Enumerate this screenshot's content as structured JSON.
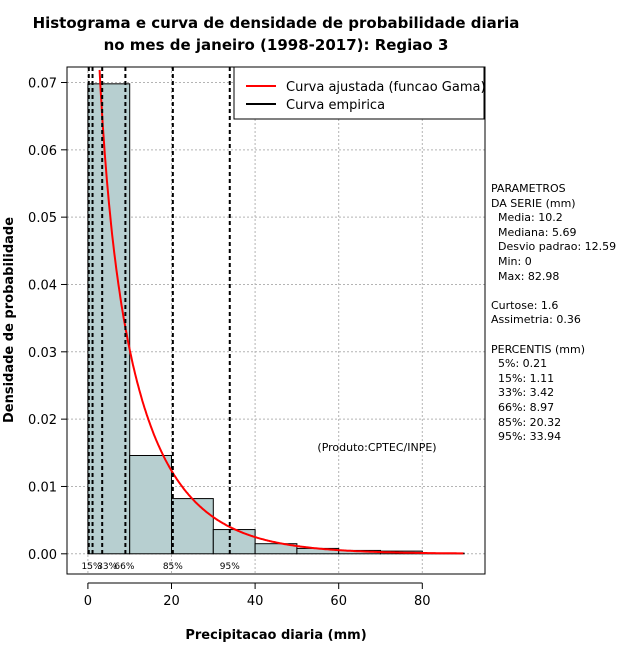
{
  "chart_data": {
    "type": "bar",
    "title_line1": "Histograma e curva de densidade de probabilidade diaria",
    "title_line2": "no mes de janeiro (1998-2017): Regiao 3",
    "xlabel": "Precipitacao diaria (mm)",
    "ylabel": "Densidade de probabilidade",
    "xlim": [
      -5,
      95
    ],
    "ylim": [
      -0.003,
      0.0723
    ],
    "x_ticks": [
      0,
      20,
      40,
      60,
      80
    ],
    "x_tick_labels": [
      "0",
      "20",
      "40",
      "60",
      "80"
    ],
    "y_ticks": [
      0,
      0.01,
      0.02,
      0.03,
      0.04,
      0.05,
      0.06,
      0.07
    ],
    "y_tick_labels": [
      "0.00",
      "0.01",
      "0.02",
      "0.03",
      "0.04",
      "0.05",
      "0.06",
      "0.07"
    ],
    "bins": [
      {
        "from": 0,
        "to": 10,
        "density": 0.0698
      },
      {
        "from": 10,
        "to": 20,
        "density": 0.0146
      },
      {
        "from": 20,
        "to": 30,
        "density": 0.0082
      },
      {
        "from": 30,
        "to": 40,
        "density": 0.0036
      },
      {
        "from": 40,
        "to": 50,
        "density": 0.0015
      },
      {
        "from": 50,
        "to": 60,
        "density": 0.0008
      },
      {
        "from": 60,
        "to": 70,
        "density": 0.0005
      },
      {
        "from": 70,
        "to": 80,
        "density": 0.0004
      },
      {
        "from": 80,
        "to": 90,
        "density": 0.0001
      }
    ],
    "gamma_fit": {
      "shape": 0.72,
      "scale": 14.2
    },
    "percentile_lines": [
      {
        "label": "5%",
        "value": 0.21,
        "show_label": false
      },
      {
        "label": "15%",
        "value": 1.11,
        "show_label": true
      },
      {
        "label": "33%",
        "value": 3.42,
        "show_label": true
      },
      {
        "label": "66%",
        "value": 8.97,
        "show_label": true
      },
      {
        "label": "85%",
        "value": 20.32,
        "show_label": true
      },
      {
        "label": "95%",
        "value": 33.94,
        "show_label": true
      }
    ],
    "legend": [
      {
        "label": "Curva ajustada (funcao Gama)",
        "color": "#ff0000"
      },
      {
        "label": "Curva empirica",
        "color": "#000000"
      }
    ],
    "legend_position": "top-right",
    "annotation": "(Produto:CPTEC/INPE)",
    "bar_color": "#b7cfd0",
    "curve_color": "#ff0000",
    "grid": true
  },
  "params": {
    "title1": "PARAMETROS",
    "title2": "DA SERIE (mm)",
    "media": "  Media: 10.2",
    "mediana": "  Mediana: 5.69",
    "desvio": "  Desvio padrao: 12.59",
    "min": "  Min: 0",
    "max": "  Max: 82.98",
    "curtose": "Curtose: 1.6",
    "assimetria": "Assimetria: 0.36",
    "percentis_title": "PERCENTIS (mm)",
    "p5": "  5%: 0.21",
    "p15": "  15%: 1.11",
    "p33": "  33%: 3.42",
    "p66": "  66%: 8.97",
    "p85": "  85%: 20.32",
    "p95": "  95%: 33.94"
  }
}
